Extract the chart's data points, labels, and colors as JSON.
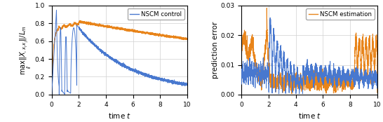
{
  "left_ylabel": "$\\max_{ij} \\|X_{,x_ix_j}\\| / L_m$",
  "right_ylabel": "prediction error",
  "xlabel": "time $t$",
  "left_ylim": [
    0.0,
    1.0
  ],
  "right_ylim": [
    0.0,
    0.03
  ],
  "xlim": [
    0,
    10
  ],
  "xticks": [
    0,
    2,
    4,
    6,
    8,
    10
  ],
  "left_yticks": [
    0.0,
    0.2,
    0.4,
    0.6,
    0.8,
    1.0
  ],
  "right_yticks": [
    0.0,
    0.01,
    0.02,
    0.03
  ],
  "blue_color": "#4878cf",
  "orange_color": "#e8841a",
  "left_legend": "NSCM control",
  "right_legend": "NSCM estimation"
}
